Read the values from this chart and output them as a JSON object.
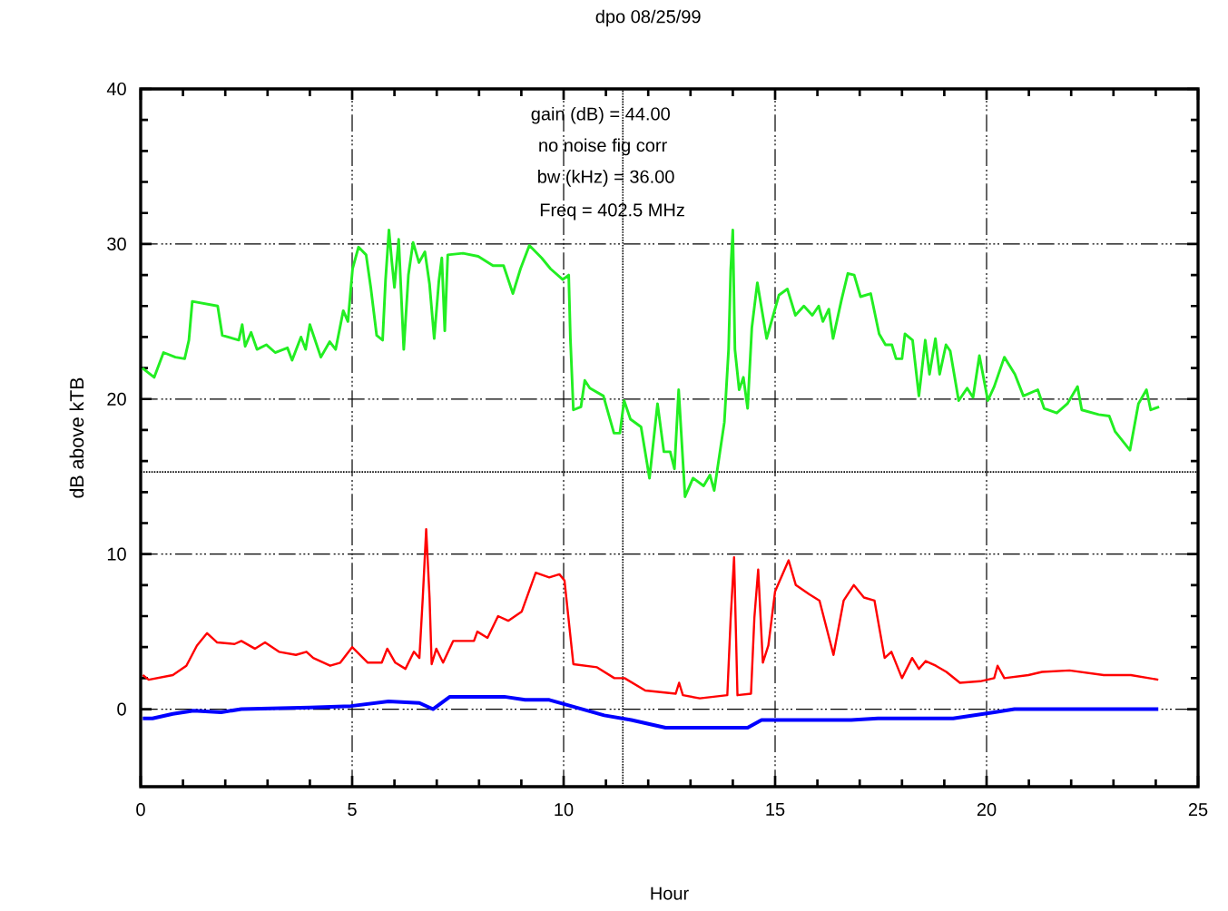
{
  "chart_data": {
    "type": "line",
    "title": "dpo  08/25/99",
    "xlabel": "Hour",
    "ylabel": "dB above kTB",
    "annotations": [
      "gain (dB) = 44.00",
      "no noise fig corr",
      "bw  (kHz) = 36.00",
      "Freq = 402.5 MHz"
    ],
    "xlim": [
      0,
      25
    ],
    "ylim": [
      -5,
      40
    ],
    "xticks": [
      0,
      5,
      10,
      15,
      20,
      25
    ],
    "yticks": [
      0,
      10,
      20,
      30,
      40
    ],
    "grid": true,
    "ref_lines": [
      {
        "axis": "x",
        "value": 11.4,
        "line_style": "dotted"
      },
      {
        "axis": "y",
        "value": 15.3,
        "line_style": "dotted"
      }
    ],
    "series": [
      {
        "color": "#22ee22",
        "x": [
          0.04,
          0.32,
          0.54,
          0.82,
          1.04,
          1.14,
          1.22,
          1.82,
          1.93,
          2.32,
          2.4,
          2.47,
          2.61,
          2.75,
          2.97,
          3.18,
          3.47,
          3.58,
          3.79,
          3.9,
          4.0,
          4.26,
          4.47,
          4.61,
          4.79,
          4.9,
          5.01,
          5.15,
          5.33,
          5.44,
          5.58,
          5.72,
          5.79,
          5.87,
          5.94,
          6.0,
          6.1,
          6.22,
          6.33,
          6.44,
          6.58,
          6.72,
          6.83,
          6.94,
          7.05,
          7.12,
          7.19,
          7.26,
          7.62,
          7.98,
          8.33,
          8.58,
          8.8,
          8.98,
          9.19,
          9.48,
          9.69,
          9.98,
          10.12,
          10.16,
          10.23,
          10.41,
          10.5,
          10.62,
          10.94,
          11.19,
          11.33,
          11.43,
          11.58,
          11.83,
          12.03,
          12.22,
          12.37,
          12.52,
          12.62,
          12.72,
          12.87,
          13.06,
          13.31,
          13.46,
          13.56,
          13.8,
          13.9,
          13.95,
          14.0,
          14.05,
          14.15,
          14.25,
          14.35,
          14.45,
          14.58,
          14.8,
          15.09,
          15.29,
          15.48,
          15.68,
          15.88,
          16.03,
          16.13,
          16.27,
          16.37,
          16.57,
          16.72,
          16.87,
          17.02,
          17.26,
          17.46,
          17.61,
          17.76,
          17.86,
          18.0,
          18.07,
          18.25,
          18.4,
          18.55,
          18.65,
          18.79,
          18.89,
          19.04,
          19.14,
          19.34,
          19.54,
          19.68,
          19.83,
          20.03,
          20.18,
          20.42,
          20.67,
          20.87,
          21.21,
          21.36,
          21.66,
          21.91,
          22.15,
          22.25,
          22.65,
          22.9,
          23.04,
          23.39,
          23.59,
          23.78,
          23.88,
          24.08
        ],
        "values": [
          22.0,
          21.4,
          23.0,
          22.7,
          22.6,
          23.8,
          26.3,
          26.0,
          24.1,
          23.8,
          24.8,
          23.4,
          24.3,
          23.2,
          23.5,
          23.0,
          23.3,
          22.5,
          24.0,
          23.2,
          24.8,
          22.7,
          23.7,
          23.2,
          25.7,
          25.0,
          28.4,
          29.8,
          29.3,
          27.2,
          24.1,
          23.8,
          27.7,
          30.9,
          28.8,
          27.2,
          30.3,
          23.2,
          28.0,
          30.1,
          28.8,
          29.5,
          27.4,
          23.9,
          27.6,
          29.1,
          24.4,
          29.3,
          29.4,
          29.2,
          28.6,
          28.6,
          26.8,
          28.4,
          29.9,
          29.1,
          28.4,
          27.7,
          28.0,
          23.9,
          19.3,
          19.5,
          21.2,
          20.7,
          20.2,
          17.8,
          17.8,
          19.9,
          18.7,
          18.2,
          14.9,
          19.7,
          16.6,
          16.6,
          15.5,
          20.6,
          13.7,
          14.9,
          14.4,
          15.1,
          14.1,
          18.5,
          23.2,
          28.3,
          30.9,
          23.2,
          20.6,
          21.4,
          19.4,
          24.6,
          27.5,
          23.9,
          26.7,
          27.1,
          25.4,
          26.0,
          25.4,
          26.0,
          25.0,
          25.8,
          23.9,
          26.4,
          28.1,
          28.0,
          26.6,
          26.8,
          24.2,
          23.5,
          23.5,
          22.6,
          22.6,
          24.2,
          23.8,
          20.2,
          23.8,
          21.6,
          23.9,
          21.6,
          23.5,
          23.1,
          19.9,
          20.7,
          20.1,
          22.8,
          19.9,
          20.8,
          22.7,
          21.6,
          20.2,
          20.6,
          19.4,
          19.1,
          19.7,
          20.8,
          19.3,
          19.0,
          18.9,
          17.9,
          16.7,
          19.7,
          20.6,
          19.3,
          19.5
        ]
      },
      {
        "color": "#ff0000",
        "x": [
          0.05,
          0.19,
          0.76,
          1.08,
          1.33,
          1.57,
          1.81,
          2.22,
          2.38,
          2.7,
          2.94,
          3.27,
          3.67,
          3.92,
          4.08,
          4.48,
          4.72,
          5.0,
          5.37,
          5.7,
          5.83,
          6.02,
          6.26,
          6.46,
          6.59,
          6.67,
          6.75,
          6.83,
          6.88,
          6.99,
          7.15,
          7.39,
          7.88,
          7.96,
          8.2,
          8.45,
          8.69,
          9.01,
          9.34,
          9.66,
          9.9,
          10.02,
          10.23,
          10.79,
          11.2,
          11.44,
          11.93,
          12.65,
          12.73,
          12.82,
          13.22,
          13.87,
          13.95,
          14.03,
          14.11,
          14.43,
          14.51,
          14.6,
          14.71,
          14.84,
          15.0,
          15.24,
          15.32,
          15.49,
          15.81,
          16.05,
          16.38,
          16.62,
          16.86,
          17.1,
          17.35,
          17.59,
          17.75,
          18.0,
          18.24,
          18.4,
          18.56,
          18.8,
          19.05,
          19.37,
          19.85,
          20.18,
          20.26,
          20.42,
          20.99,
          21.31,
          21.96,
          22.77,
          23.41,
          24.06
        ],
        "values": [
          2.2,
          1.9,
          2.2,
          2.8,
          4.1,
          4.9,
          4.3,
          4.2,
          4.4,
          3.9,
          4.3,
          3.7,
          3.5,
          3.7,
          3.3,
          2.8,
          3.0,
          4.0,
          3.0,
          3.0,
          3.9,
          3.0,
          2.6,
          3.7,
          3.3,
          7.2,
          11.6,
          7.2,
          2.9,
          3.9,
          3.0,
          4.4,
          4.4,
          5.0,
          4.6,
          6.0,
          5.7,
          6.3,
          8.8,
          8.5,
          8.7,
          8.3,
          2.9,
          2.7,
          2.0,
          2.0,
          1.2,
          1.0,
          1.7,
          0.9,
          0.7,
          0.9,
          5.9,
          9.8,
          0.9,
          1.0,
          5.9,
          9.0,
          3.0,
          4.1,
          7.6,
          9.1,
          9.6,
          8.0,
          7.4,
          7.0,
          3.5,
          7.0,
          8.0,
          7.2,
          7.0,
          3.3,
          3.7,
          2.0,
          3.3,
          2.6,
          3.1,
          2.8,
          2.4,
          1.7,
          1.8,
          2.0,
          2.8,
          2.0,
          2.2,
          2.4,
          2.5,
          2.2,
          2.2,
          1.9
        ]
      },
      {
        "color": "#0000ff",
        "x": [
          0.05,
          0.28,
          0.76,
          1.25,
          1.9,
          2.38,
          4.0,
          4.97,
          5.86,
          6.59,
          6.91,
          7.31,
          8.6,
          9.09,
          9.66,
          10.31,
          10.96,
          11.6,
          12.41,
          14.35,
          14.68,
          15.17,
          16.8,
          17.43,
          19.21,
          20.18,
          20.66,
          24.06
        ],
        "values": [
          -0.6,
          -0.6,
          -0.3,
          -0.1,
          -0.2,
          0.0,
          0.1,
          0.2,
          0.5,
          0.4,
          0.0,
          0.8,
          0.8,
          0.6,
          0.6,
          0.1,
          -0.4,
          -0.7,
          -1.2,
          -1.2,
          -0.7,
          -0.7,
          -0.7,
          -0.6,
          -0.6,
          -0.2,
          0.0,
          0.0
        ]
      }
    ]
  }
}
